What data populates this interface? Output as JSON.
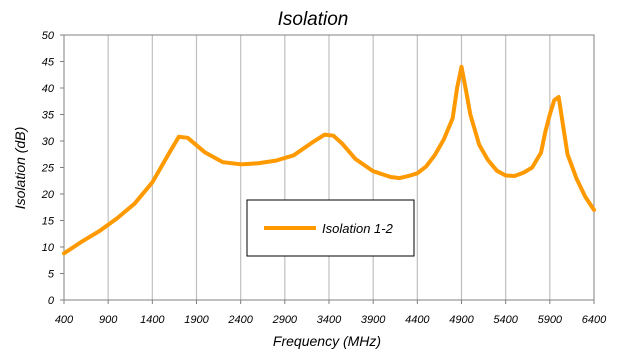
{
  "chart_data": {
    "type": "line",
    "title": "Isolation",
    "xlabel": "Frequency (MHz)",
    "ylabel": "Isolation (dB)",
    "xlim": [
      400,
      6400
    ],
    "ylim": [
      0,
      50
    ],
    "xticks": [
      400,
      900,
      1400,
      1900,
      2400,
      2900,
      3400,
      3900,
      4400,
      4900,
      5400,
      5900,
      6400
    ],
    "yticks": [
      0,
      5,
      10,
      15,
      20,
      25,
      30,
      35,
      40,
      45,
      50
    ],
    "grid": {
      "vertical": true,
      "horizontal": false
    },
    "legend": {
      "placement": "lower-center"
    },
    "series": [
      {
        "name": "Isolation 1-2",
        "color": "#FF9900",
        "x": [
          400,
          600,
          800,
          1000,
          1200,
          1400,
          1600,
          1700,
          1800,
          2000,
          2200,
          2400,
          2600,
          2800,
          3000,
          3200,
          3350,
          3450,
          3550,
          3700,
          3900,
          4100,
          4200,
          4300,
          4400,
          4500,
          4600,
          4700,
          4800,
          4850,
          4900,
          4950,
          5000,
          5100,
          5200,
          5300,
          5400,
          5500,
          5600,
          5700,
          5800,
          5850,
          5900,
          5950,
          6000,
          6100,
          6200,
          6300,
          6400
        ],
        "values": [
          8.8,
          11.0,
          13.0,
          15.4,
          18.2,
          22.2,
          28.0,
          30.8,
          30.6,
          27.8,
          26.0,
          25.6,
          25.8,
          26.3,
          27.3,
          29.6,
          31.2,
          31.0,
          29.5,
          26.6,
          24.3,
          23.2,
          23.0,
          23.4,
          23.9,
          25.2,
          27.4,
          30.3,
          34.3,
          40.0,
          44.0,
          39.6,
          35.0,
          29.3,
          26.4,
          24.4,
          23.5,
          23.4,
          24.0,
          25.0,
          27.8,
          31.8,
          35.0,
          37.7,
          38.3,
          27.5,
          23.0,
          19.5,
          17.0
        ]
      }
    ]
  }
}
